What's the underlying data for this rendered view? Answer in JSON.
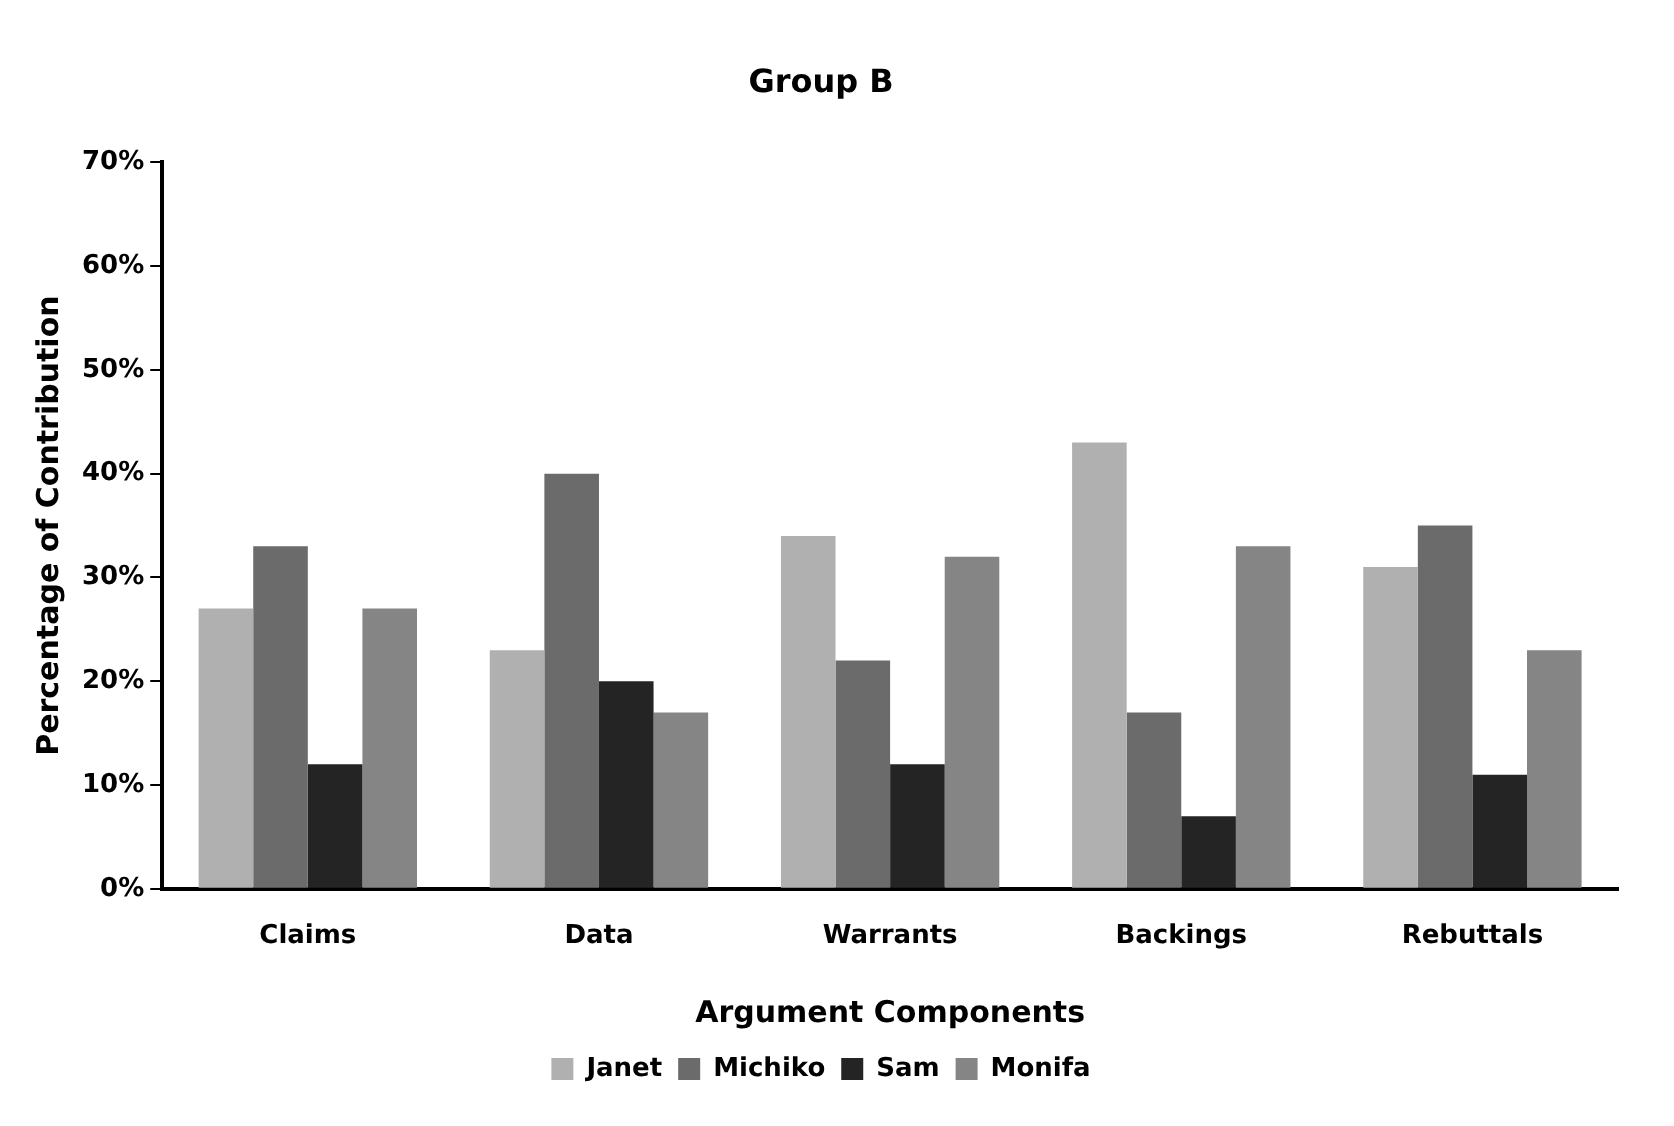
{
  "chart_data": {
    "type": "bar",
    "title": "Group B",
    "xlabel": "Argument Components",
    "ylabel": "Percentage of Contribution",
    "categories": [
      "Claims",
      "Data",
      "Warrants",
      "Backings",
      "Rebuttals"
    ],
    "series": [
      {
        "name": "Janet",
        "color": "#b0b0b0",
        "values": [
          27,
          23,
          34,
          43,
          31
        ]
      },
      {
        "name": "Michiko",
        "color": "#6b6b6b",
        "values": [
          33,
          40,
          22,
          17,
          35
        ]
      },
      {
        "name": "Sam",
        "color": "#242424",
        "values": [
          12,
          20,
          12,
          7,
          11
        ]
      },
      {
        "name": "Monifa",
        "color": "#858585",
        "values": [
          27,
          17,
          32,
          33,
          23
        ]
      }
    ],
    "ylim": [
      0,
      70
    ],
    "yticks": [
      {
        "value": 0,
        "label": "0%"
      },
      {
        "value": 10,
        "label": "10%"
      },
      {
        "value": 20,
        "label": "20%"
      },
      {
        "value": 30,
        "label": "30%"
      },
      {
        "value": 40,
        "label": "40%"
      },
      {
        "value": 50,
        "label": "50%"
      },
      {
        "value": 60,
        "label": "60%"
      },
      {
        "value": 70,
        "label": "70%"
      }
    ],
    "grid": false,
    "legend": "bottom"
  }
}
